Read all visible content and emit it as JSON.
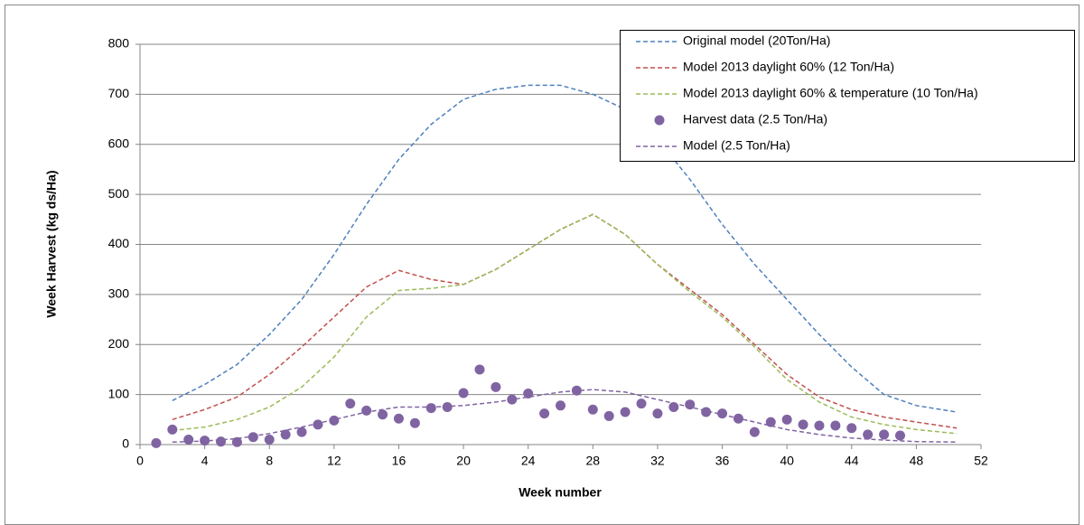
{
  "chart_data": {
    "type": "line",
    "x_label": "Week number",
    "y_label": "Week Harvest (kg ds/Ha)",
    "xlim": [
      0,
      52
    ],
    "xticks": [
      0,
      4,
      8,
      12,
      16,
      20,
      24,
      28,
      32,
      36,
      40,
      44,
      48,
      52
    ],
    "ylim": [
      0,
      800
    ],
    "yticks": [
      0,
      100,
      200,
      300,
      400,
      500,
      600,
      700,
      800
    ],
    "grid": true,
    "legend": "upper right",
    "series": [
      {
        "name": "Original model (20Ton/Ha)",
        "color": "#4f81bd",
        "kind": "line",
        "dashed": true,
        "x": [
          2,
          4,
          6,
          8,
          10,
          12,
          14,
          16,
          18,
          20,
          22,
          24,
          26,
          28,
          30,
          32,
          34,
          36,
          38,
          40,
          42,
          44,
          46,
          48,
          50.5
        ],
        "values": [
          88,
          120,
          160,
          220,
          290,
          380,
          480,
          570,
          640,
          690,
          710,
          718,
          718,
          700,
          670,
          610,
          530,
          440,
          360,
          290,
          220,
          155,
          100,
          78,
          65
        ]
      },
      {
        "name": "Model 2013 daylight 60%  (12 Ton/Ha)",
        "color": "#c0504d",
        "kind": "line",
        "dashed": true,
        "x": [
          2,
          4,
          6,
          8,
          10,
          12,
          14,
          16,
          18,
          20,
          22,
          24,
          26,
          28,
          30,
          32,
          34,
          36,
          38,
          40,
          42,
          44,
          46,
          48,
          50.5
        ],
        "values": [
          50,
          70,
          95,
          140,
          195,
          255,
          315,
          348,
          330,
          320,
          350,
          390,
          430,
          460,
          420,
          360,
          310,
          260,
          200,
          140,
          95,
          70,
          55,
          45,
          33
        ]
      },
      {
        "name": "Model 2013 daylight 60% & temperature  (10 Ton/Ha)",
        "color": "#9bbb59",
        "kind": "line",
        "dashed": true,
        "x": [
          2,
          4,
          6,
          8,
          10,
          12,
          14,
          16,
          18,
          20,
          22,
          24,
          26,
          28,
          30,
          32,
          34,
          36,
          38,
          40,
          42,
          44,
          46,
          48,
          50.5
        ],
        "values": [
          28,
          35,
          50,
          75,
          115,
          175,
          255,
          308,
          312,
          320,
          350,
          390,
          430,
          460,
          420,
          360,
          305,
          255,
          195,
          130,
          85,
          55,
          40,
          30,
          22
        ]
      },
      {
        "name": "Harvest data (2.5 Ton/Ha)",
        "color": "#8064a2",
        "kind": "scatter",
        "dashed": false,
        "x": [
          1,
          2,
          3,
          4,
          5,
          6,
          7,
          8,
          9,
          10,
          11,
          12,
          13,
          14,
          15,
          16,
          17,
          18,
          19,
          20,
          21,
          22,
          23,
          24,
          25,
          26,
          27,
          28,
          29,
          30,
          31,
          32,
          33,
          34,
          35,
          36,
          37,
          38,
          39,
          40,
          41,
          42,
          43,
          44,
          45,
          46,
          47
        ],
        "values": [
          3,
          30,
          10,
          8,
          6,
          5,
          15,
          10,
          20,
          25,
          40,
          48,
          82,
          68,
          60,
          52,
          43,
          73,
          75,
          103,
          150,
          115,
          90,
          102,
          62,
          78,
          108,
          70,
          57,
          65,
          82,
          62,
          75,
          80,
          65,
          62,
          52,
          25,
          45,
          50,
          40,
          38,
          38,
          33,
          20,
          20,
          18
        ]
      },
      {
        "name": "Model (2.5 Ton/Ha)",
        "color": "#8064a2",
        "kind": "line",
        "dashed": true,
        "x": [
          2,
          4,
          6,
          8,
          10,
          12,
          14,
          16,
          18,
          20,
          22,
          24,
          26,
          28,
          30,
          32,
          34,
          36,
          38,
          40,
          42,
          44,
          46,
          48,
          50.5
        ],
        "values": [
          5,
          7,
          12,
          22,
          35,
          50,
          65,
          75,
          75,
          78,
          85,
          95,
          105,
          110,
          105,
          90,
          75,
          60,
          45,
          30,
          20,
          13,
          9,
          6,
          5
        ]
      }
    ]
  }
}
